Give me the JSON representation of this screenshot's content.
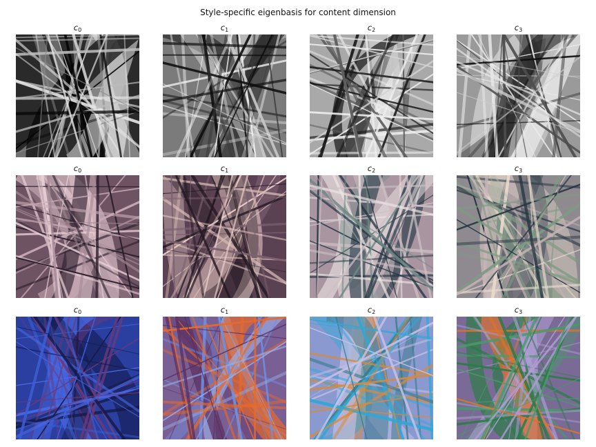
{
  "figure": {
    "suptitle": "Style-specific eigenbasis for content dimension"
  },
  "rows": [
    {
      "style": "grayscale",
      "panels": [
        {
          "label_base": "c",
          "label_sub": "0",
          "palette": {
            "bg": "#2a2a2a",
            "light": "#e6e6e6",
            "dark": "#050505",
            "accent1": "#8a8a8a",
            "accent2": "#bdbdbd"
          }
        },
        {
          "label_base": "c",
          "label_sub": "1",
          "palette": {
            "bg": "#7b7b7b",
            "light": "#f2f2f2",
            "dark": "#0d0d0d",
            "accent1": "#c8c8c8",
            "accent2": "#3a3a3a"
          }
        },
        {
          "label_base": "c",
          "label_sub": "2",
          "palette": {
            "bg": "#a9a9a9",
            "light": "#efefef",
            "dark": "#1a1a1a",
            "accent1": "#5e5e5e",
            "accent2": "#d4d4d4"
          }
        },
        {
          "label_base": "c",
          "label_sub": "3",
          "palette": {
            "bg": "#9a9a9a",
            "light": "#eaeaea",
            "dark": "#0f0f0f",
            "accent1": "#4d4d4d",
            "accent2": "#cfcfcf"
          }
        }
      ]
    },
    {
      "style": "mauve",
      "panels": [
        {
          "label_base": "c",
          "label_sub": "0",
          "palette": {
            "bg": "#6e5463",
            "light": "#e9cfd6",
            "dark": "#2a1d2a",
            "accent1": "#a58a95",
            "accent2": "#c9aab5"
          }
        },
        {
          "label_base": "c",
          "label_sub": "1",
          "palette": {
            "bg": "#5a4253",
            "light": "#efd2cf",
            "dark": "#231821",
            "accent1": "#7e6170",
            "accent2": "#d6b8b3"
          }
        },
        {
          "label_base": "c",
          "label_sub": "2",
          "palette": {
            "bg": "#a8959f",
            "light": "#efe6e6",
            "dark": "#1f3340",
            "accent1": "#6f8a86",
            "accent2": "#cfc1c6"
          }
        },
        {
          "label_base": "c",
          "label_sub": "3",
          "palette": {
            "bg": "#8e8a8f",
            "light": "#eadccf",
            "dark": "#273642",
            "accent1": "#7f9a84",
            "accent2": "#c8b4b8"
          }
        }
      ]
    },
    {
      "style": "colorful",
      "panels": [
        {
          "label_base": "c",
          "label_sub": "0",
          "palette": {
            "bg": "#2a3fa0",
            "light": "#4a6ae6",
            "dark": "#151a4a",
            "accent1": "#6a3a7a",
            "accent2": "#3d5fd8"
          }
        },
        {
          "label_base": "c",
          "label_sub": "1",
          "palette": {
            "bg": "#7a5f95",
            "light": "#9aaee6",
            "dark": "#5a2f60",
            "accent1": "#e86a2a",
            "accent2": "#6f8fe0"
          }
        },
        {
          "label_base": "c",
          "label_sub": "2",
          "palette": {
            "bg": "#8a9ad0",
            "light": "#c9c2e6",
            "dark": "#3a7a8a",
            "accent1": "#d98a3a",
            "accent2": "#2fa8d8"
          }
        },
        {
          "label_base": "c",
          "label_sub": "3",
          "palette": {
            "bg": "#7a6a96",
            "light": "#b0a0d6",
            "dark": "#2f7a4a",
            "accent1": "#e0722a",
            "accent2": "#4a9a6a"
          }
        }
      ]
    }
  ]
}
